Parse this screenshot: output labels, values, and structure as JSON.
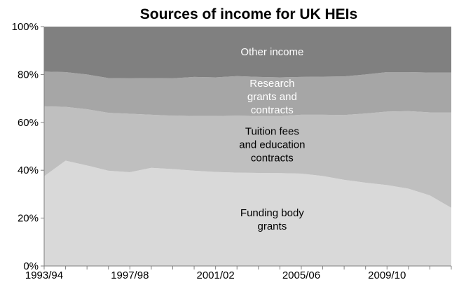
{
  "chart_data": {
    "type": "area",
    "stacked": true,
    "title": "Sources of income for UK HEIs",
    "xlabel": "",
    "ylabel": "",
    "ylim": [
      0,
      100
    ],
    "y_ticks": [
      "0%",
      "20%",
      "40%",
      "60%",
      "80%",
      "100%"
    ],
    "x": [
      "1993/94",
      "1994/95",
      "1995/96",
      "1996/97",
      "1997/98",
      "1998/99",
      "1999/00",
      "2000/01",
      "2001/02",
      "2002/03",
      "2003/04",
      "2004/05",
      "2005/06",
      "2006/07",
      "2007/08",
      "2008/09",
      "2009/10",
      "2010/11",
      "2011/12",
      "2012/13"
    ],
    "x_tick_labels": [
      "1993/94",
      "1997/98",
      "2001/02",
      "2005/06",
      "2009/10"
    ],
    "grid": false,
    "legend": "none (series labelled inside the areas)",
    "series": [
      {
        "name": "Funding body grants",
        "label_lines": [
          "Funding body",
          "grants"
        ],
        "color": "#d9d9d9",
        "label_color": "#000000",
        "values": [
          37.5,
          44,
          42,
          39.8,
          39.2,
          41,
          40.5,
          39.8,
          39.3,
          39,
          38.9,
          38.8,
          38.6,
          37.6,
          36,
          34.8,
          33.8,
          32.3,
          29.5,
          24.3
        ]
      },
      {
        "name": "Tuition fees and education contracts",
        "label_lines": [
          "Tuition fees",
          "and education",
          "contracts"
        ],
        "color": "#bfbfbf",
        "label_color": "#000000",
        "values": [
          29.2,
          22.5,
          23.5,
          24.2,
          24.4,
          22.2,
          22.3,
          22.9,
          23.4,
          23.8,
          23.8,
          23.9,
          24.6,
          25.6,
          27.1,
          28.9,
          30.7,
          32.4,
          34.7,
          39.9
        ]
      },
      {
        "name": "Research grants and contracts",
        "label_lines": [
          "Research",
          "grants and",
          "contracts"
        ],
        "color": "#a6a6a6",
        "label_color": "#ffffff",
        "values": [
          14.5,
          14.5,
          14.5,
          14.5,
          14.8,
          15.3,
          15.6,
          16.3,
          16.1,
          16.5,
          16.3,
          16.1,
          15.8,
          15.9,
          16.1,
          16.3,
          16.5,
          16.3,
          16.6,
          16.6
        ]
      },
      {
        "name": "Other income",
        "label_lines": [
          "Other income"
        ],
        "color": "#808080",
        "label_color": "#ffffff",
        "values": [
          18.8,
          19,
          20,
          21.5,
          21.6,
          21.5,
          21.6,
          21,
          21.2,
          20.7,
          21,
          21.2,
          21,
          20.9,
          20.8,
          20,
          19,
          19,
          19.2,
          19.2
        ]
      }
    ]
  }
}
